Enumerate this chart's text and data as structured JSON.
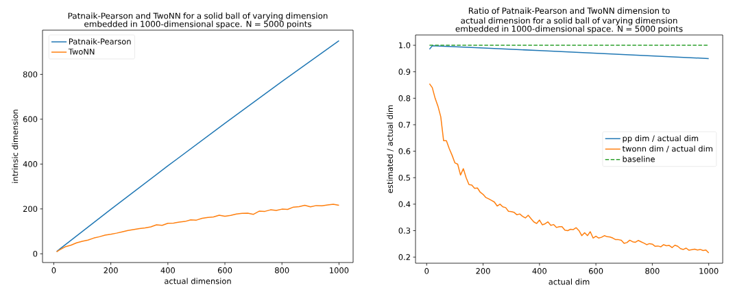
{
  "chart_data": [
    {
      "type": "line",
      "title": "Patnaik-Pearson and TwoNN for a solid ball of varying dimension",
      "subtitle": "embedded in 1000-dimensional space. N = 5000 points",
      "xlabel": "actual dimension",
      "ylabel": "intrinsic dimension",
      "xlim": [
        -39.5,
        1049.5
      ],
      "ylim": [
        -39,
        997
      ],
      "xticks": [
        0,
        200,
        400,
        600,
        800,
        1000
      ],
      "yticks": [
        0,
        200,
        400,
        600,
        800
      ],
      "legend": "top left",
      "series": [
        {
          "name": "Patnaik-Pearson",
          "color": "#1f77b4",
          "x": [
            10,
            20,
            200,
            400,
            600,
            800,
            1000
          ],
          "values": [
            10,
            20,
            198,
            392,
            582,
            768,
            950
          ]
        },
        {
          "name": "TwoNN",
          "color": "#ff7f0e",
          "x": [
            10,
            20,
            40,
            60,
            80,
            100,
            120,
            140,
            160,
            180,
            200,
            220,
            240,
            260,
            280,
            300,
            320,
            340,
            360,
            380,
            400,
            420,
            440,
            460,
            480,
            500,
            520,
            540,
            560,
            580,
            600,
            620,
            640,
            660,
            680,
            700,
            720,
            740,
            760,
            780,
            800,
            820,
            840,
            860,
            880,
            900,
            920,
            940,
            960,
            980,
            1000
          ],
          "values": [
            9,
            17,
            31,
            38,
            49,
            56,
            61,
            70,
            76,
            83,
            87,
            92,
            98,
            104,
            108,
            112,
            115,
            120,
            129,
            127,
            136,
            137,
            141,
            144,
            151,
            150,
            158,
            162,
            164,
            172,
            167,
            171,
            177,
            180,
            181,
            176,
            190,
            189,
            196,
            193,
            199,
            198,
            208,
            210,
            216,
            209,
            215,
            214,
            218,
            221,
            216
          ]
        }
      ]
    },
    {
      "type": "line",
      "title": "Ratio of Patnaik-Pearson and TwoNN dimension to actual dimension for a solid ball of varying dimension",
      "subtitle": "embedded in 1000-dimensional space. N = 5000 points",
      "xlabel": "actual dim",
      "ylabel": "estimated / actual dim",
      "xlim": [
        -39.5,
        1049.5
      ],
      "ylim": [
        0.177,
        1.039
      ],
      "xticks": [
        0,
        200,
        400,
        600,
        800,
        1000
      ],
      "yticks": [
        0.2,
        0.3,
        0.4,
        0.5,
        0.6,
        0.7,
        0.8,
        0.9,
        {
          "value": 1.0,
          "label": "1.0"
        }
      ],
      "legend": "right",
      "series": [
        {
          "name": "pp dim / actual dim",
          "color": "#1f77b4",
          "x": [
            10,
            20,
            200,
            400,
            600,
            800,
            1000
          ],
          "values": [
            0.985,
            0.998,
            0.99,
            0.98,
            0.97,
            0.96,
            0.95
          ]
        },
        {
          "name": "twonn dim / actual dim",
          "color": "#ff7f0e",
          "x": [
            10,
            20,
            30,
            40,
            50,
            60,
            70,
            80,
            90,
            100,
            110,
            120,
            130,
            140,
            150,
            160,
            170,
            180,
            190,
            200,
            210,
            220,
            230,
            240,
            250,
            260,
            270,
            280,
            290,
            300,
            310,
            320,
            330,
            340,
            350,
            360,
            370,
            380,
            390,
            400,
            410,
            420,
            430,
            440,
            450,
            460,
            470,
            480,
            490,
            500,
            510,
            520,
            530,
            540,
            550,
            560,
            570,
            580,
            590,
            600,
            610,
            620,
            630,
            640,
            650,
            660,
            670,
            680,
            690,
            700,
            710,
            720,
            730,
            740,
            750,
            760,
            770,
            780,
            790,
            800,
            810,
            820,
            830,
            840,
            850,
            860,
            870,
            880,
            890,
            900,
            910,
            920,
            930,
            940,
            950,
            960,
            970,
            980,
            990,
            1000
          ],
          "values": [
            0.855,
            0.84,
            0.8,
            0.77,
            0.73,
            0.64,
            0.64,
            0.61,
            0.585,
            0.556,
            0.551,
            0.51,
            0.534,
            0.5,
            0.474,
            0.472,
            0.46,
            0.461,
            0.445,
            0.437,
            0.425,
            0.42,
            0.414,
            0.408,
            0.393,
            0.4,
            0.39,
            0.387,
            0.373,
            0.372,
            0.369,
            0.36,
            0.363,
            0.354,
            0.348,
            0.358,
            0.345,
            0.333,
            0.327,
            0.34,
            0.322,
            0.326,
            0.333,
            0.32,
            0.323,
            0.312,
            0.315,
            0.315,
            0.302,
            0.3,
            0.305,
            0.304,
            0.311,
            0.3,
            0.281,
            0.292,
            0.281,
            0.296,
            0.272,
            0.279,
            0.272,
            0.275,
            0.281,
            0.277,
            0.276,
            0.272,
            0.266,
            0.266,
            0.264,
            0.252,
            0.255,
            0.264,
            0.258,
            0.256,
            0.263,
            0.258,
            0.253,
            0.247,
            0.251,
            0.249,
            0.241,
            0.242,
            0.239,
            0.247,
            0.243,
            0.244,
            0.236,
            0.245,
            0.241,
            0.232,
            0.229,
            0.234,
            0.226,
            0.228,
            0.23,
            0.227,
            0.229,
            0.225,
            0.227,
            0.216
          ]
        },
        {
          "name": "baseline",
          "color": "#2ca02c",
          "line_style": "dashed",
          "x": [
            10,
            1000
          ],
          "values": [
            1,
            1
          ]
        }
      ]
    }
  ]
}
